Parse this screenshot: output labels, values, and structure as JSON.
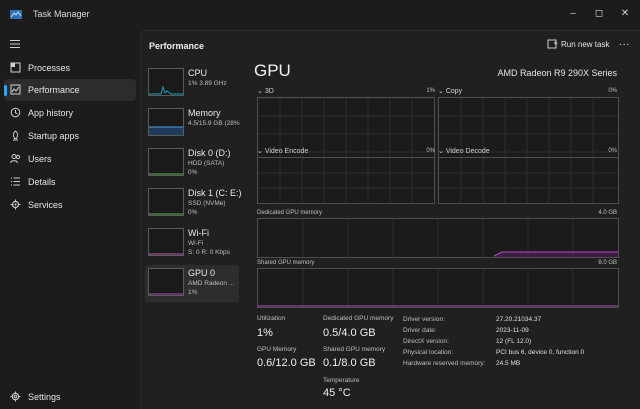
{
  "window": {
    "title": "Task Manager"
  },
  "nav": {
    "items": [
      {
        "label": "Processes"
      },
      {
        "label": "Performance"
      },
      {
        "label": "App history"
      },
      {
        "label": "Startup apps"
      },
      {
        "label": "Users"
      },
      {
        "label": "Details"
      },
      {
        "label": "Services"
      }
    ],
    "settings_label": "Settings"
  },
  "header": {
    "title": "Performance",
    "run_task_label": "Run new task",
    "more_label": "..."
  },
  "devices": [
    {
      "name": "CPU",
      "sub": "1% 3.89 GHz",
      "sub2": ""
    },
    {
      "name": "Memory",
      "sub": "4.5/15.9 GB (28%",
      "sub2": ""
    },
    {
      "name": "Disk 0 (D:)",
      "sub": "HDD (SATA)",
      "sub2": "0%"
    },
    {
      "name": "Disk 1 (C: E:)",
      "sub": "SSD (NVMe)",
      "sub2": "0%"
    },
    {
      "name": "Wi-Fi",
      "sub": "Wi-Fi",
      "sub2": "S: 0 R: 0 Kbps"
    },
    {
      "name": "GPU 0",
      "sub": "AMD Radeon ...",
      "sub2": "1%"
    }
  ],
  "gpu": {
    "title": "GPU",
    "model": "AMD Radeon R9 290X Series",
    "engines": [
      {
        "label": "3D",
        "pct": "1%"
      },
      {
        "label": "Copy",
        "pct": "0%"
      },
      {
        "label": "Video Encode",
        "pct": "0%"
      },
      {
        "label": "Video Decode",
        "pct": "0%"
      }
    ],
    "dedicated": {
      "label": "Dedicated GPU memory",
      "max": "4.0 GB"
    },
    "shared": {
      "label": "Shared GPU memory",
      "max": "8.0 GB"
    }
  },
  "stats": {
    "utilization": {
      "label": "Utilization",
      "value": "1%"
    },
    "dedicated_mem": {
      "label": "Dedicated GPU memory",
      "value": "0.5/4.0 GB"
    },
    "gpu_memory": {
      "label": "GPU Memory",
      "value": "0.6/12.0 GB"
    },
    "shared_mem": {
      "label": "Shared GPU memory",
      "value": "0.1/8.0 GB"
    },
    "temperature": {
      "label": "Temperature",
      "value": "45 °C"
    }
  },
  "info": [
    {
      "label": "Driver version:",
      "value": "27.20.21034.37"
    },
    {
      "label": "Driver date:",
      "value": "2023-11-09"
    },
    {
      "label": "DirectX version:",
      "value": "12 (FL 12.0)"
    },
    {
      "label": "Physical location:",
      "value": "PCI bus 6, device 0, function 0"
    },
    {
      "label": "Hardware reserved memory:",
      "value": "24.5 MB"
    }
  ],
  "colors": {
    "accent": "#3ba0e6",
    "gpu_line": "#b548c6",
    "cpu_line": "#17a2c9"
  }
}
